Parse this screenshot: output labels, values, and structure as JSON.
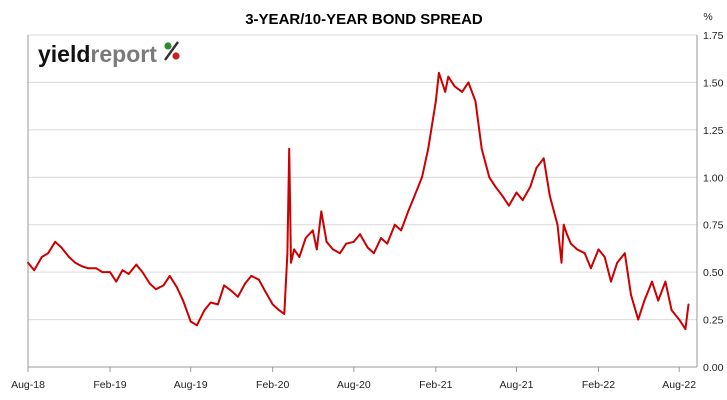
{
  "chart_data": {
    "type": "line",
    "title": "3-YEAR/10-YEAR BOND SPREAD",
    "ylabel": "%",
    "ylim": [
      0,
      1.75
    ],
    "yticks": [
      "0.00",
      "0.25",
      "0.50",
      "0.75",
      "1.00",
      "1.25",
      "1.50",
      "1.75"
    ],
    "xlim": [
      "2018-08-01",
      "2022-09-10"
    ],
    "xticks": [
      {
        "date": "2018-08-01",
        "label": "Aug-18"
      },
      {
        "date": "2019-02-01",
        "label": "Feb-19"
      },
      {
        "date": "2019-08-01",
        "label": "Aug-19"
      },
      {
        "date": "2020-02-01",
        "label": "Feb-20"
      },
      {
        "date": "2020-08-01",
        "label": "Aug-20"
      },
      {
        "date": "2021-02-01",
        "label": "Feb-21"
      },
      {
        "date": "2021-08-01",
        "label": "Aug-21"
      },
      {
        "date": "2022-02-01",
        "label": "Feb-22"
      },
      {
        "date": "2022-08-01",
        "label": "Aug-22"
      }
    ],
    "grid": true,
    "series": [
      {
        "color": "#cc0000",
        "x": [
          "2018-08-01",
          "2018-08-15",
          "2018-09-01",
          "2018-09-15",
          "2018-10-01",
          "2018-10-15",
          "2018-11-01",
          "2018-11-15",
          "2018-12-01",
          "2018-12-15",
          "2019-01-01",
          "2019-01-15",
          "2019-02-01",
          "2019-02-15",
          "2019-03-01",
          "2019-03-15",
          "2019-04-01",
          "2019-04-15",
          "2019-05-01",
          "2019-05-15",
          "2019-06-01",
          "2019-06-15",
          "2019-07-01",
          "2019-07-15",
          "2019-08-01",
          "2019-08-15",
          "2019-09-01",
          "2019-09-15",
          "2019-10-01",
          "2019-10-15",
          "2019-11-01",
          "2019-11-15",
          "2019-12-01",
          "2019-12-15",
          "2020-01-01",
          "2020-01-15",
          "2020-02-01",
          "2020-02-15",
          "2020-02-27",
          "2020-03-05",
          "2020-03-09",
          "2020-03-13",
          "2020-03-20",
          "2020-04-01",
          "2020-04-15",
          "2020-05-01",
          "2020-05-10",
          "2020-05-20",
          "2020-06-01",
          "2020-06-15",
          "2020-07-01",
          "2020-07-15",
          "2020-08-01",
          "2020-08-15",
          "2020-09-01",
          "2020-09-15",
          "2020-10-01",
          "2020-10-15",
          "2020-11-01",
          "2020-11-15",
          "2020-12-01",
          "2020-12-15",
          "2021-01-01",
          "2021-01-15",
          "2021-02-01",
          "2021-02-08",
          "2021-02-15",
          "2021-02-22",
          "2021-03-01",
          "2021-03-15",
          "2021-04-01",
          "2021-04-15",
          "2021-05-01",
          "2021-05-15",
          "2021-06-01",
          "2021-06-15",
          "2021-07-01",
          "2021-07-15",
          "2021-08-01",
          "2021-08-15",
          "2021-09-01",
          "2021-09-15",
          "2021-10-01",
          "2021-10-15",
          "2021-11-01",
          "2021-11-10",
          "2021-11-15",
          "2021-11-22",
          "2021-12-01",
          "2021-12-15",
          "2022-01-01",
          "2022-01-15",
          "2022-02-01",
          "2022-02-15",
          "2022-03-01",
          "2022-03-15",
          "2022-04-01",
          "2022-04-15",
          "2022-05-01",
          "2022-05-15",
          "2022-06-01",
          "2022-06-15",
          "2022-07-01",
          "2022-07-15",
          "2022-08-01",
          "2022-08-15",
          "2022-08-22"
        ],
        "y": [
          0.55,
          0.51,
          0.58,
          0.6,
          0.66,
          0.63,
          0.58,
          0.55,
          0.53,
          0.52,
          0.52,
          0.5,
          0.5,
          0.45,
          0.51,
          0.49,
          0.54,
          0.5,
          0.44,
          0.41,
          0.43,
          0.48,
          0.42,
          0.35,
          0.24,
          0.22,
          0.3,
          0.34,
          0.33,
          0.43,
          0.4,
          0.37,
          0.44,
          0.48,
          0.46,
          0.4,
          0.33,
          0.3,
          0.28,
          0.6,
          1.15,
          0.55,
          0.62,
          0.58,
          0.68,
          0.72,
          0.62,
          0.82,
          0.66,
          0.62,
          0.6,
          0.65,
          0.66,
          0.7,
          0.63,
          0.6,
          0.68,
          0.65,
          0.75,
          0.72,
          0.82,
          0.9,
          1.0,
          1.15,
          1.4,
          1.55,
          1.5,
          1.45,
          1.53,
          1.48,
          1.45,
          1.5,
          1.4,
          1.15,
          1.0,
          0.95,
          0.9,
          0.85,
          0.92,
          0.88,
          0.95,
          1.05,
          1.1,
          0.9,
          0.75,
          0.55,
          0.75,
          0.7,
          0.65,
          0.62,
          0.6,
          0.52,
          0.62,
          0.58,
          0.45,
          0.55,
          0.6,
          0.38,
          0.25,
          0.35,
          0.45,
          0.35,
          0.45,
          0.3,
          0.25,
          0.2,
          0.33
        ]
      }
    ]
  },
  "logo": {
    "part1": "yield",
    "part2": "report",
    "pct": "%"
  }
}
